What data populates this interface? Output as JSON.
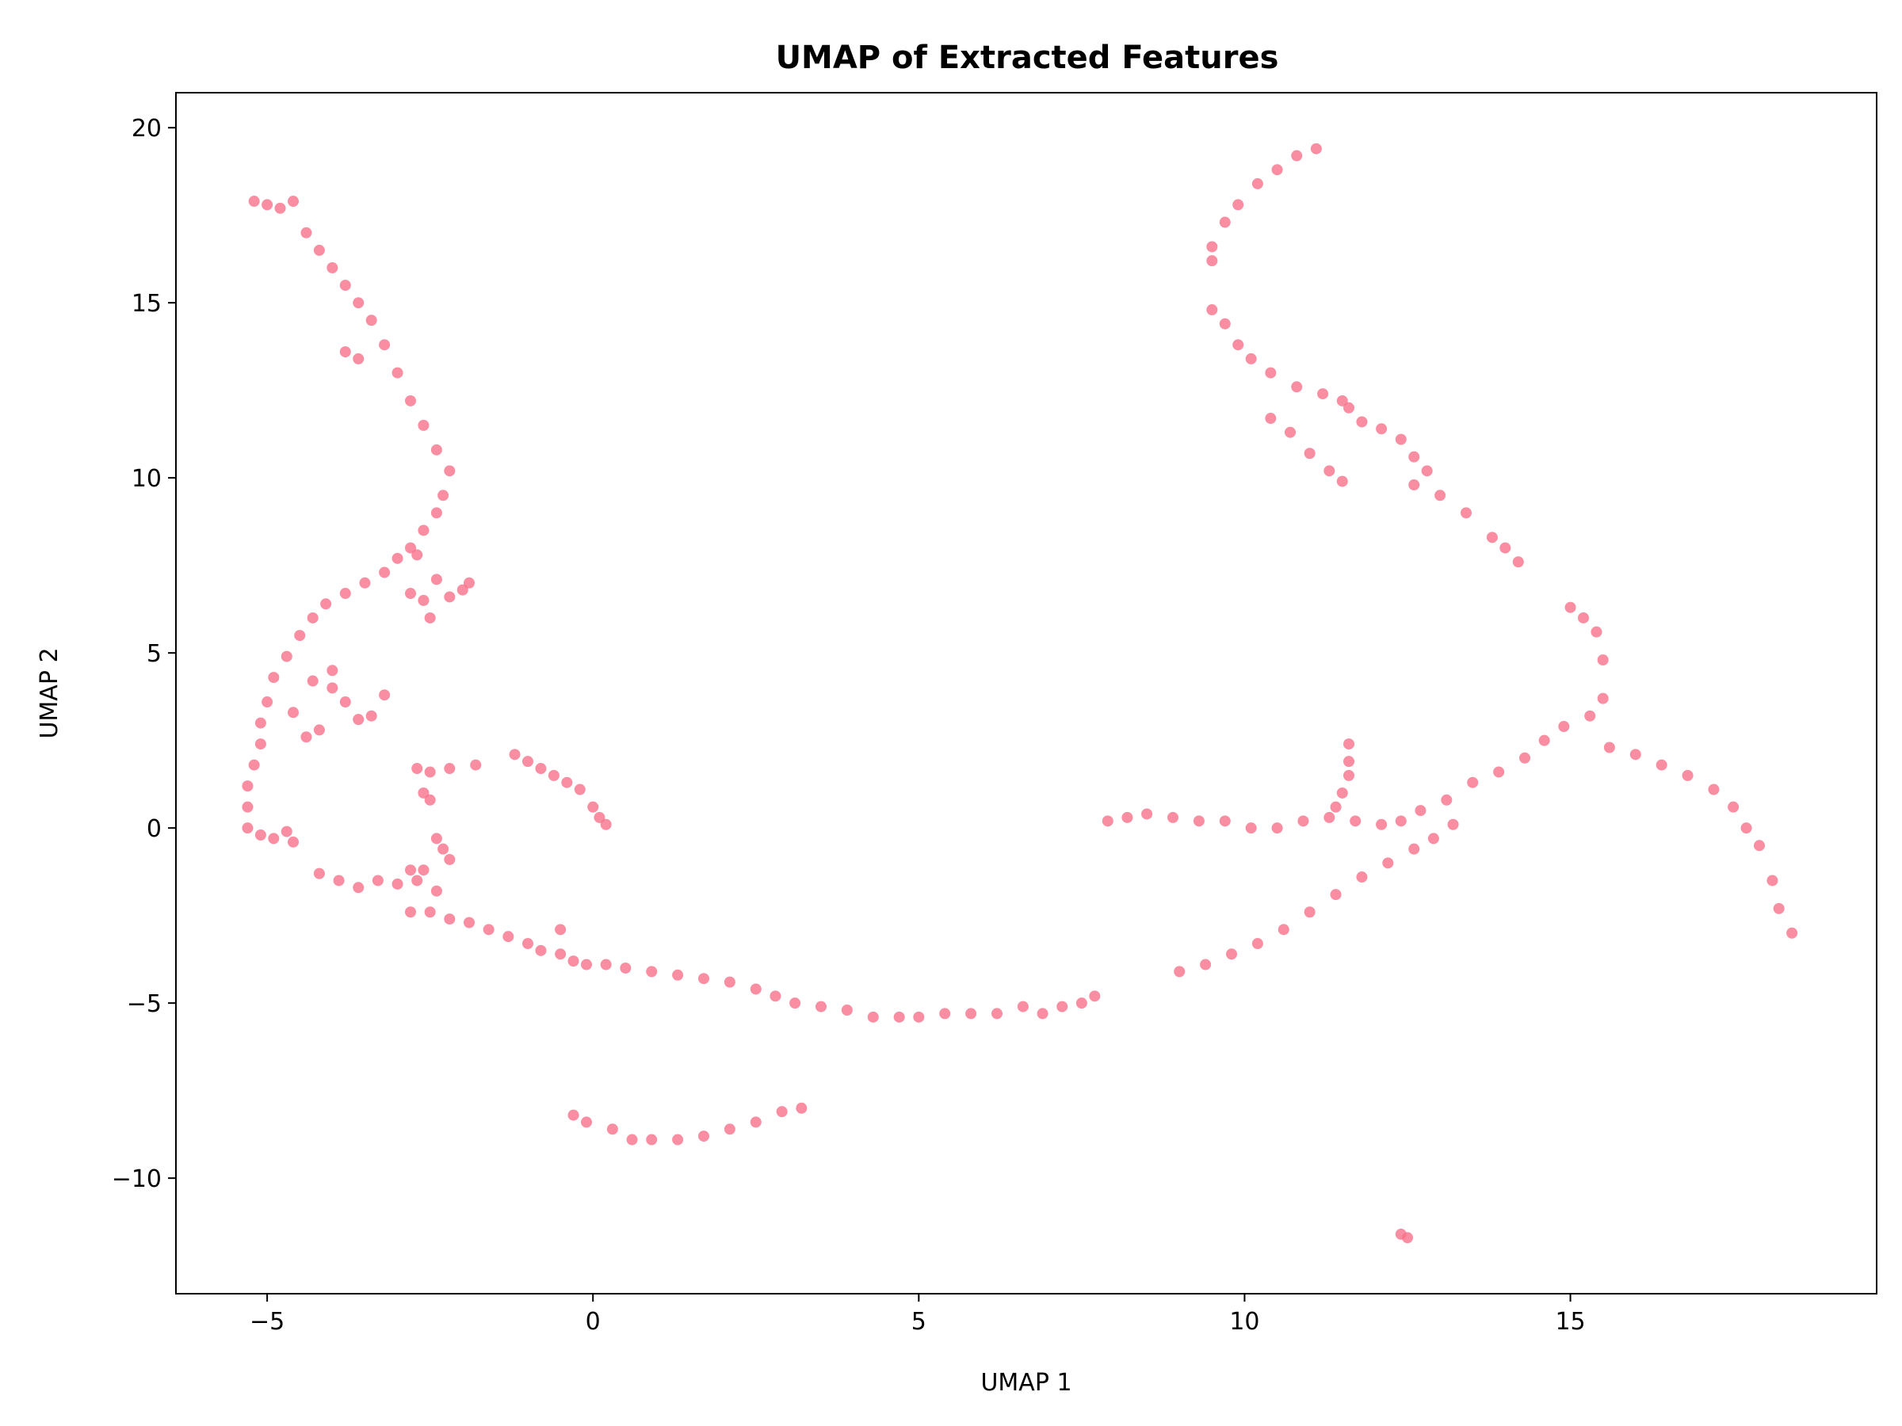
{
  "chart_data": {
    "type": "scatter",
    "title": "UMAP of Extracted Features",
    "xlabel": "UMAP 1",
    "ylabel": "UMAP 2",
    "xlim": [
      -6.4,
      19.7
    ],
    "ylim": [
      -13.3,
      21.0
    ],
    "xticks": [
      -5,
      0,
      5,
      10,
      15
    ],
    "xtick_labels": [
      "−5",
      "0",
      "5",
      "10",
      "15"
    ],
    "yticks": [
      -10,
      -5,
      0,
      5,
      10,
      15,
      20
    ],
    "ytick_labels": [
      "−10",
      "−5",
      "0",
      "5",
      "10",
      "15",
      "20"
    ],
    "grid": false,
    "marker_color": "#f77189",
    "marker_opacity": 0.8,
    "points": [
      [
        -5.2,
        17.9
      ],
      [
        -5.0,
        17.8
      ],
      [
        -4.8,
        17.7
      ],
      [
        -4.6,
        17.9
      ],
      [
        -4.4,
        17.0
      ],
      [
        -4.2,
        16.5
      ],
      [
        -4.0,
        16.0
      ],
      [
        -3.8,
        15.5
      ],
      [
        -3.6,
        15.0
      ],
      [
        -3.4,
        14.5
      ],
      [
        -3.2,
        13.8
      ],
      [
        -3.0,
        13.0
      ],
      [
        -2.8,
        12.2
      ],
      [
        -2.6,
        11.5
      ],
      [
        -2.4,
        10.8
      ],
      [
        -2.2,
        10.2
      ],
      [
        -2.3,
        9.5
      ],
      [
        -2.4,
        9.0
      ],
      [
        -2.6,
        8.5
      ],
      [
        -2.8,
        8.0
      ],
      [
        -3.0,
        7.7
      ],
      [
        -3.2,
        7.3
      ],
      [
        -3.5,
        7.0
      ],
      [
        -3.8,
        6.7
      ],
      [
        -4.1,
        6.4
      ],
      [
        -4.3,
        6.0
      ],
      [
        -4.5,
        5.5
      ],
      [
        -4.7,
        4.9
      ],
      [
        -4.9,
        4.3
      ],
      [
        -5.0,
        3.6
      ],
      [
        -5.1,
        3.0
      ],
      [
        -5.1,
        2.4
      ],
      [
        -5.2,
        1.8
      ],
      [
        -5.3,
        1.2
      ],
      [
        -5.3,
        0.6
      ],
      [
        -5.3,
        0.0
      ],
      [
        -5.1,
        -0.2
      ],
      [
        -4.9,
        -0.3
      ],
      [
        -4.7,
        -0.1
      ],
      [
        -4.6,
        -0.4
      ],
      [
        -4.0,
        4.5
      ],
      [
        -3.8,
        3.6
      ],
      [
        -3.6,
        3.1
      ],
      [
        -3.4,
        3.2
      ],
      [
        -3.2,
        3.8
      ],
      [
        -4.2,
        2.8
      ],
      [
        -4.4,
        2.6
      ],
      [
        -4.6,
        3.3
      ],
      [
        -4.0,
        4.0
      ],
      [
        -4.3,
        4.2
      ],
      [
        -3.6,
        13.4
      ],
      [
        -3.8,
        13.6
      ],
      [
        -2.8,
        6.7
      ],
      [
        -2.6,
        6.5
      ],
      [
        -2.5,
        6.0
      ],
      [
        -2.2,
        6.6
      ],
      [
        -2.0,
        6.8
      ],
      [
        -1.9,
        7.0
      ],
      [
        -2.4,
        7.1
      ],
      [
        -2.7,
        7.8
      ],
      [
        -2.7,
        1.7
      ],
      [
        -2.5,
        1.6
      ],
      [
        -2.2,
        1.7
      ],
      [
        -2.6,
        1.0
      ],
      [
        -2.5,
        0.8
      ],
      [
        -1.8,
        1.8
      ],
      [
        -1.2,
        2.1
      ],
      [
        -1.0,
        1.9
      ],
      [
        -0.8,
        1.7
      ],
      [
        -0.6,
        1.5
      ],
      [
        -0.4,
        1.3
      ],
      [
        -0.2,
        1.1
      ],
      [
        0.0,
        0.6
      ],
      [
        0.1,
        0.3
      ],
      [
        0.2,
        0.1
      ],
      [
        -2.4,
        -0.3
      ],
      [
        -2.3,
        -0.6
      ],
      [
        -2.2,
        -0.9
      ],
      [
        -2.8,
        -1.2
      ],
      [
        -2.6,
        -1.2
      ],
      [
        -4.2,
        -1.3
      ],
      [
        -3.9,
        -1.5
      ],
      [
        -3.6,
        -1.7
      ],
      [
        -3.3,
        -1.5
      ],
      [
        -3.0,
        -1.6
      ],
      [
        -2.7,
        -1.5
      ],
      [
        -2.4,
        -1.8
      ],
      [
        -2.8,
        -2.4
      ],
      [
        -2.5,
        -2.4
      ],
      [
        -2.2,
        -2.6
      ],
      [
        -1.9,
        -2.7
      ],
      [
        -1.6,
        -2.9
      ],
      [
        -1.3,
        -3.1
      ],
      [
        -1.0,
        -3.3
      ],
      [
        -0.8,
        -3.5
      ],
      [
        -0.5,
        -3.6
      ],
      [
        -0.5,
        -2.9
      ],
      [
        -0.3,
        -3.8
      ],
      [
        -0.1,
        -3.9
      ],
      [
        0.2,
        -3.9
      ],
      [
        0.5,
        -4.0
      ],
      [
        0.9,
        -4.1
      ],
      [
        1.3,
        -4.2
      ],
      [
        1.7,
        -4.3
      ],
      [
        2.1,
        -4.4
      ],
      [
        2.5,
        -4.6
      ],
      [
        2.8,
        -4.8
      ],
      [
        3.1,
        -5.0
      ],
      [
        3.5,
        -5.1
      ],
      [
        3.9,
        -5.2
      ],
      [
        4.3,
        -5.4
      ],
      [
        4.7,
        -5.4
      ],
      [
        5.0,
        -5.4
      ],
      [
        5.4,
        -5.3
      ],
      [
        5.8,
        -5.3
      ],
      [
        6.2,
        -5.3
      ],
      [
        6.6,
        -5.1
      ],
      [
        6.9,
        -5.3
      ],
      [
        7.2,
        -5.1
      ],
      [
        7.5,
        -5.0
      ],
      [
        7.7,
        -4.8
      ],
      [
        -0.3,
        -8.2
      ],
      [
        -0.1,
        -8.4
      ],
      [
        0.3,
        -8.6
      ],
      [
        0.6,
        -8.9
      ],
      [
        0.9,
        -8.9
      ],
      [
        1.3,
        -8.9
      ],
      [
        1.7,
        -8.8
      ],
      [
        2.1,
        -8.6
      ],
      [
        2.5,
        -8.4
      ],
      [
        2.9,
        -8.1
      ],
      [
        3.2,
        -8.0
      ],
      [
        12.4,
        -11.6
      ],
      [
        12.5,
        -11.7
      ],
      [
        11.1,
        19.4
      ],
      [
        10.8,
        19.2
      ],
      [
        10.5,
        18.8
      ],
      [
        10.2,
        18.4
      ],
      [
        9.9,
        17.8
      ],
      [
        9.7,
        17.3
      ],
      [
        9.5,
        16.6
      ],
      [
        9.5,
        16.2
      ],
      [
        9.5,
        14.8
      ],
      [
        9.7,
        14.4
      ],
      [
        9.9,
        13.8
      ],
      [
        10.1,
        13.4
      ],
      [
        10.4,
        13.0
      ],
      [
        10.8,
        12.6
      ],
      [
        11.2,
        12.4
      ],
      [
        11.5,
        12.2
      ],
      [
        10.4,
        11.7
      ],
      [
        10.7,
        11.3
      ],
      [
        11.0,
        10.7
      ],
      [
        11.3,
        10.2
      ],
      [
        11.5,
        9.9
      ],
      [
        11.6,
        12.0
      ],
      [
        11.8,
        11.6
      ],
      [
        12.1,
        11.4
      ],
      [
        12.4,
        11.1
      ],
      [
        12.6,
        10.6
      ],
      [
        12.8,
        10.2
      ],
      [
        12.6,
        9.8
      ],
      [
        13.0,
        9.5
      ],
      [
        13.4,
        9.0
      ],
      [
        13.8,
        8.3
      ],
      [
        14.0,
        8.0
      ],
      [
        14.2,
        7.6
      ],
      [
        15.0,
        6.3
      ],
      [
        15.2,
        6.0
      ],
      [
        15.4,
        5.6
      ],
      [
        15.5,
        4.8
      ],
      [
        15.5,
        3.7
      ],
      [
        15.3,
        3.2
      ],
      [
        15.6,
        2.3
      ],
      [
        16.0,
        2.1
      ],
      [
        16.4,
        1.8
      ],
      [
        16.8,
        1.5
      ],
      [
        17.2,
        1.1
      ],
      [
        17.5,
        0.6
      ],
      [
        17.7,
        0.0
      ],
      [
        17.9,
        -0.5
      ],
      [
        18.1,
        -1.5
      ],
      [
        18.2,
        -2.3
      ],
      [
        18.4,
        -3.0
      ],
      [
        14.9,
        2.9
      ],
      [
        14.6,
        2.5
      ],
      [
        14.3,
        2.0
      ],
      [
        13.9,
        1.6
      ],
      [
        13.5,
        1.3
      ],
      [
        13.1,
        0.8
      ],
      [
        12.7,
        0.5
      ],
      [
        12.4,
        0.2
      ],
      [
        12.1,
        0.1
      ],
      [
        11.7,
        0.2
      ],
      [
        11.3,
        0.3
      ],
      [
        10.9,
        0.2
      ],
      [
        10.5,
        0.0
      ],
      [
        10.1,
        0.0
      ],
      [
        9.7,
        0.2
      ],
      [
        9.3,
        0.2
      ],
      [
        8.9,
        0.3
      ],
      [
        8.5,
        0.4
      ],
      [
        8.2,
        0.3
      ],
      [
        7.9,
        0.2
      ],
      [
        11.6,
        2.4
      ],
      [
        11.6,
        1.9
      ],
      [
        11.6,
        1.5
      ],
      [
        11.5,
        1.0
      ],
      [
        11.4,
        0.6
      ],
      [
        9.0,
        -4.1
      ],
      [
        9.4,
        -3.9
      ],
      [
        9.8,
        -3.6
      ],
      [
        10.2,
        -3.3
      ],
      [
        10.6,
        -2.9
      ],
      [
        11.0,
        -2.4
      ],
      [
        11.4,
        -1.9
      ],
      [
        11.8,
        -1.4
      ],
      [
        12.2,
        -1.0
      ],
      [
        12.6,
        -0.6
      ],
      [
        12.9,
        -0.3
      ],
      [
        13.2,
        0.1
      ]
    ]
  }
}
